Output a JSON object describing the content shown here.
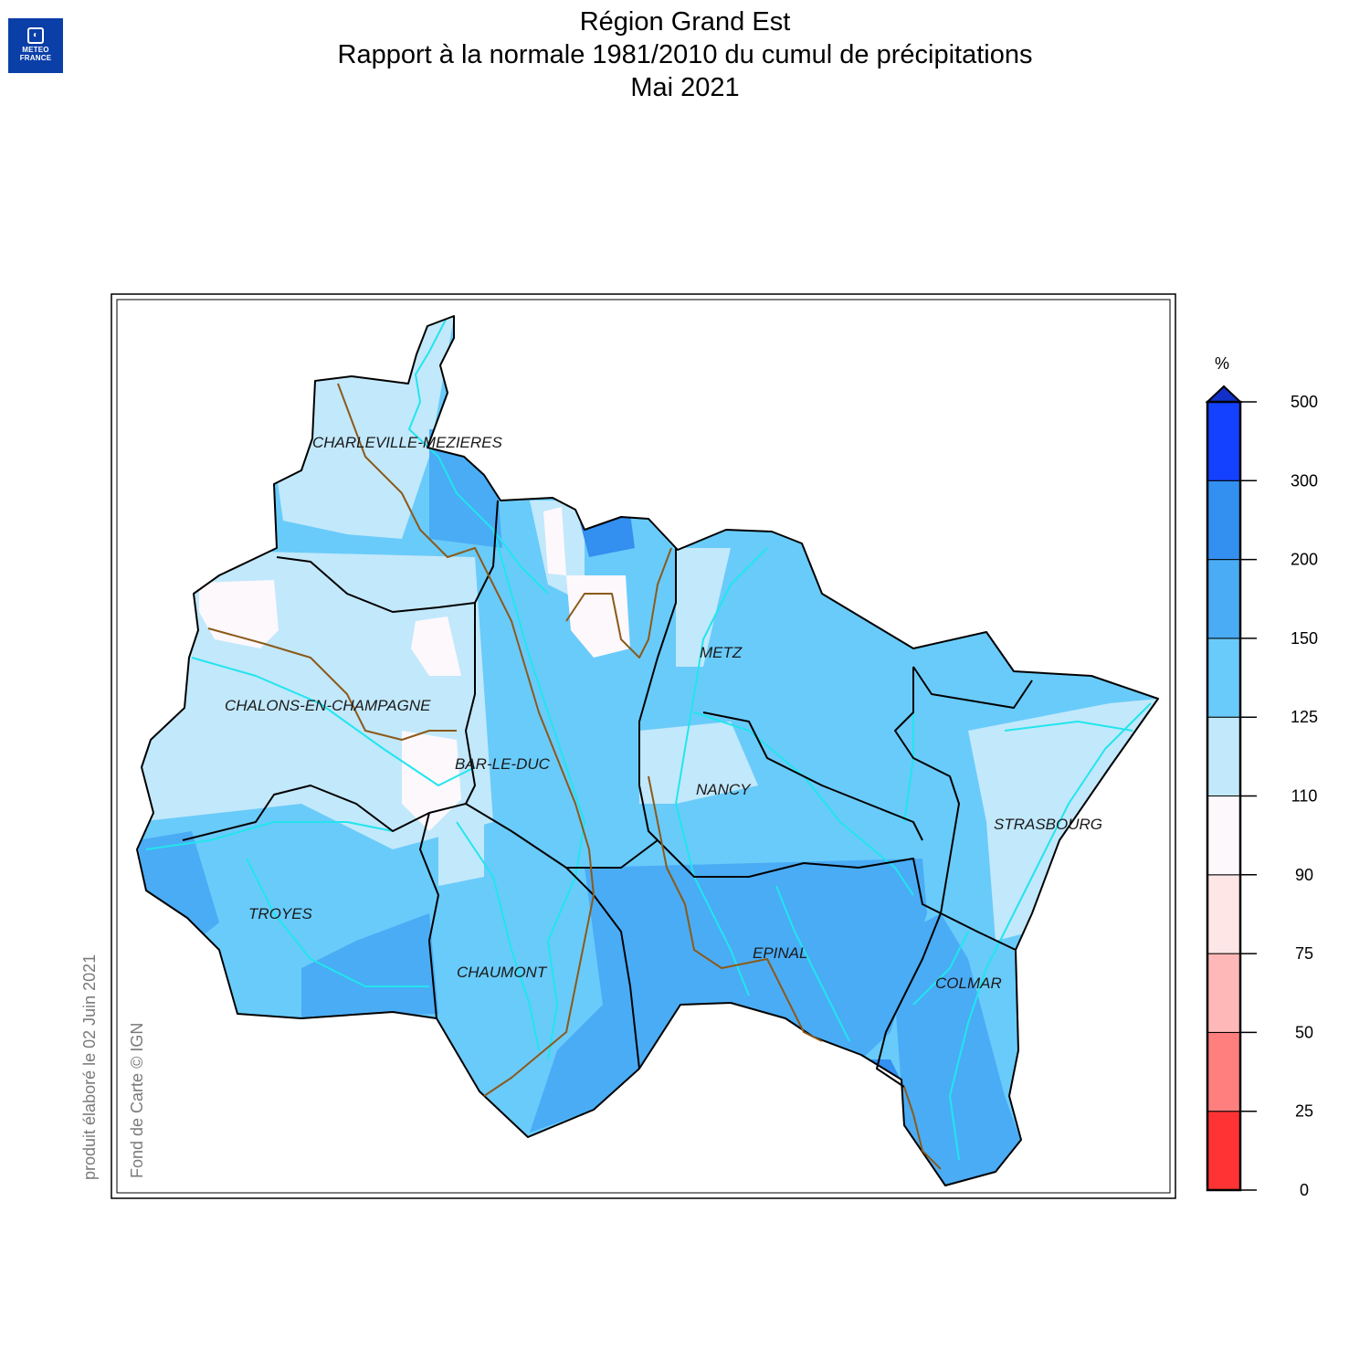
{
  "header": {
    "logo_line1": "METEO",
    "logo_line2": "FRANCE",
    "title_line1": "Région Grand Est",
    "title_line2": "Rapport à la normale 1981/2010 du cumul de précipitations",
    "title_line3": "Mai 2021"
  },
  "credits": {
    "produced": "produit élaboré le 02 Juin 2021",
    "basemap": "Fond de Carte © IGN"
  },
  "cities": [
    {
      "id": "charleville",
      "label": "CHARLEVILLE-MEZIERES"
    },
    {
      "id": "chalons",
      "label": "CHALONS-EN-CHAMPAGNE"
    },
    {
      "id": "barleduc",
      "label": "BAR-LE-DUC"
    },
    {
      "id": "metz",
      "label": "METZ"
    },
    {
      "id": "nancy",
      "label": "NANCY"
    },
    {
      "id": "strasbourg",
      "label": "STRASBOURG"
    },
    {
      "id": "troyes",
      "label": "TROYES"
    },
    {
      "id": "chaumont",
      "label": "CHAUMONT"
    },
    {
      "id": "epinal",
      "label": "EPINAL"
    },
    {
      "id": "colmar",
      "label": "COLMAR"
    }
  ],
  "legend": {
    "unit": "%",
    "ticks": [
      "0",
      "25",
      "50",
      "75",
      "90",
      "110",
      "125",
      "150",
      "200",
      "300",
      "500"
    ],
    "classes": [
      {
        "from": 0,
        "to": 25,
        "color": "#ff3333"
      },
      {
        "from": 25,
        "to": 50,
        "color": "#ff7f7f"
      },
      {
        "from": 50,
        "to": 75,
        "color": "#ffb8b8"
      },
      {
        "from": 75,
        "to": 90,
        "color": "#ffe6e6"
      },
      {
        "from": 90,
        "to": 110,
        "color": "#fdf8fc"
      },
      {
        "from": 110,
        "to": 125,
        "color": "#c2e8fb"
      },
      {
        "from": 125,
        "to": 150,
        "color": "#69cbfa"
      },
      {
        "from": 150,
        "to": 200,
        "color": "#4aacf5"
      },
      {
        "from": 200,
        "to": 300,
        "color": "#338ff0"
      },
      {
        "from": 300,
        "to": 500,
        "color": "#1440ff"
      }
    ],
    "overflow_color": "#1030c8"
  },
  "colors": {
    "river": "#22e5ee",
    "dept_border": "#000000",
    "region_border": "#8b5a1a"
  }
}
